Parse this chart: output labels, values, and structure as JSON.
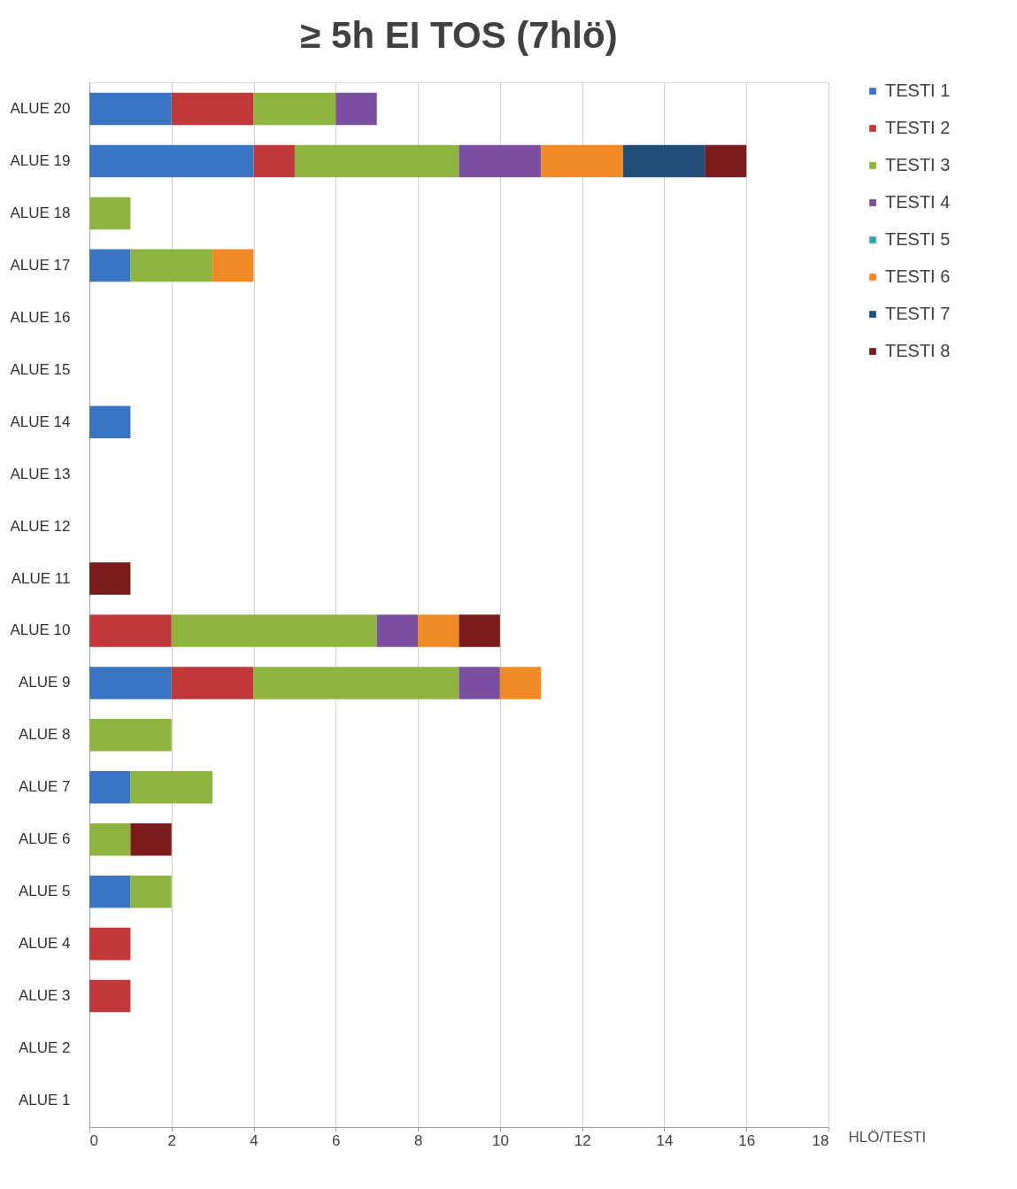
{
  "chart_data": {
    "type": "bar",
    "orientation": "horizontal",
    "stacked": true,
    "title": "≥ 5h EI TOS (7hlö)",
    "xlabel": "HLÖ/TESTI",
    "categories": [
      "ALUE 20",
      "ALUE 19",
      "ALUE 18",
      "ALUE 17",
      "ALUE 16",
      "ALUE 15",
      "ALUE 14",
      "ALUE 13",
      "ALUE 12",
      "ALUE 11",
      "ALUE 10",
      "ALUE 9",
      "ALUE 8",
      "ALUE 7",
      "ALUE 6",
      "ALUE 5",
      "ALUE 4",
      "ALUE 3",
      "ALUE 2",
      "ALUE 1"
    ],
    "series": [
      {
        "name": "TESTI 1",
        "color": "#3a75c4",
        "values": [
          2,
          4,
          null,
          1,
          null,
          null,
          1,
          null,
          null,
          null,
          null,
          2,
          null,
          1,
          null,
          1,
          null,
          null,
          null,
          null
        ]
      },
      {
        "name": "TESTI 2",
        "color": "#c0383a",
        "values": [
          2,
          1,
          null,
          null,
          null,
          null,
          null,
          null,
          null,
          null,
          2,
          2,
          null,
          null,
          null,
          null,
          1,
          1,
          null,
          null
        ]
      },
      {
        "name": "TESTI 3",
        "color": "#8db43e",
        "values": [
          2,
          4,
          1,
          2,
          null,
          null,
          null,
          null,
          null,
          null,
          5,
          5,
          2,
          2,
          1,
          1,
          null,
          null,
          null,
          null
        ]
      },
      {
        "name": "TESTI 4",
        "color": "#7b4fa0",
        "values": [
          1,
          2,
          null,
          null,
          null,
          null,
          null,
          null,
          null,
          null,
          1,
          1,
          null,
          null,
          null,
          null,
          null,
          null,
          null,
          null
        ]
      },
      {
        "name": "TESTI 5",
        "color": "#3aa0b0",
        "values": [
          null,
          null,
          null,
          null,
          null,
          null,
          null,
          null,
          null,
          null,
          null,
          null,
          null,
          null,
          null,
          null,
          null,
          null,
          null,
          null
        ]
      },
      {
        "name": "TESTI 6",
        "color": "#f08a24",
        "values": [
          null,
          2,
          null,
          1,
          null,
          null,
          null,
          null,
          null,
          null,
          1,
          1,
          null,
          null,
          null,
          null,
          null,
          null,
          null,
          null
        ]
      },
      {
        "name": "TESTI 7",
        "color": "#1f4e79",
        "values": [
          null,
          2,
          null,
          null,
          null,
          null,
          null,
          null,
          null,
          null,
          null,
          null,
          null,
          null,
          null,
          null,
          null,
          null,
          null,
          null
        ]
      },
      {
        "name": "TESTI 8",
        "color": "#7b1c1c",
        "values": [
          null,
          1,
          null,
          null,
          null,
          null,
          null,
          null,
          null,
          1,
          1,
          null,
          null,
          null,
          1,
          null,
          null,
          null,
          null,
          null
        ]
      }
    ],
    "xlim": [
      0,
      18
    ],
    "xticks": [
      0,
      2,
      4,
      6,
      8,
      10,
      12,
      14,
      16,
      18
    ],
    "grid": "x",
    "legend": "right"
  }
}
